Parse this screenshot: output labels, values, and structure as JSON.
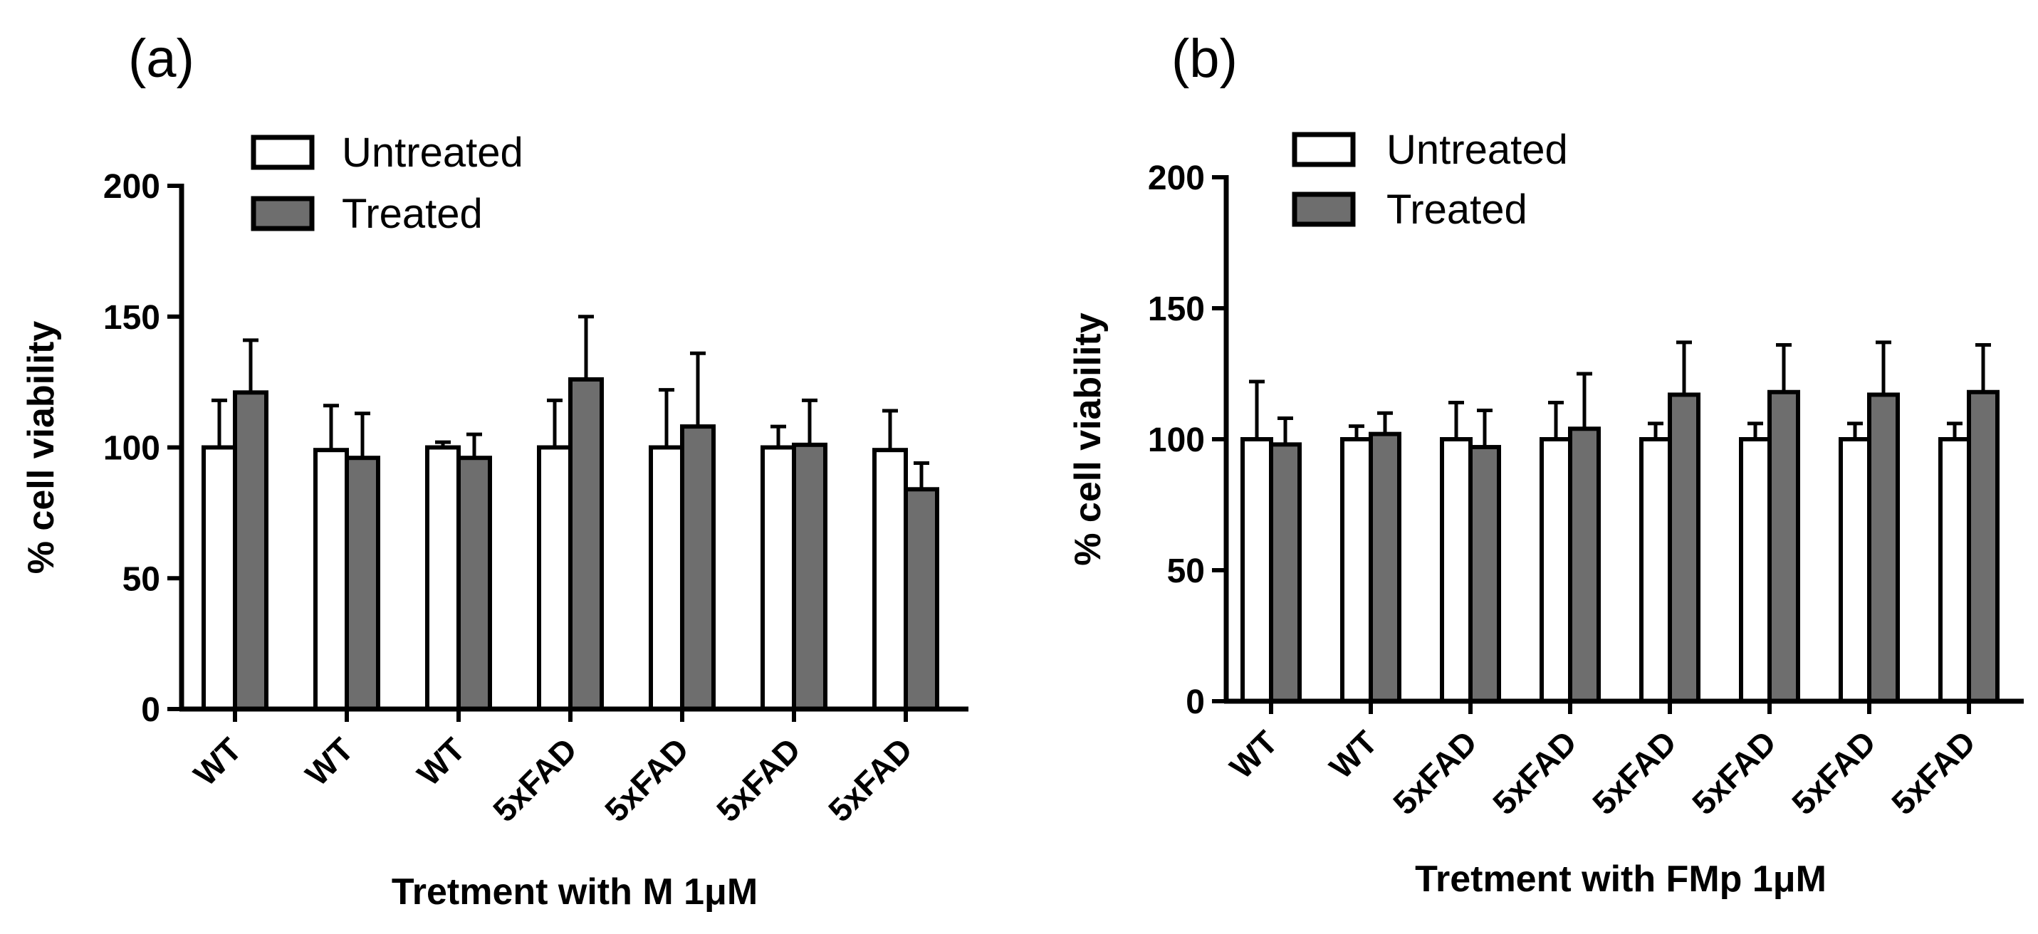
{
  "chart_data": [
    {
      "type": "bar",
      "panel_label": "(a)",
      "title": "",
      "xlabel": "Tretment with M 1μM",
      "ylabel": "% cell viability",
      "ylim": [
        0,
        200
      ],
      "yticks": [
        0,
        50,
        100,
        150,
        200
      ],
      "grid": false,
      "legend_position": "top-left",
      "categories": [
        "WT",
        "WT",
        "WT",
        "5xFAD",
        "5xFAD",
        "5xFAD",
        "5xFAD"
      ],
      "series": [
        {
          "name": "Untreated",
          "color": "#ffffff",
          "values": [
            100,
            99,
            100,
            100,
            100,
            100,
            99
          ],
          "errors": [
            18,
            17,
            2,
            18,
            22,
            8,
            15
          ]
        },
        {
          "name": "Treated",
          "color": "#6e6e6e",
          "values": [
            121,
            96,
            96,
            126,
            108,
            101,
            84
          ],
          "errors": [
            20,
            17,
            9,
            24,
            28,
            17,
            10
          ]
        }
      ]
    },
    {
      "type": "bar",
      "panel_label": "(b)",
      "title": "",
      "xlabel": "Tretment with FMp 1μM",
      "ylabel": "% cell viability",
      "ylim": [
        0,
        200
      ],
      "yticks": [
        0,
        50,
        100,
        150,
        200
      ],
      "grid": false,
      "legend_position": "top-left",
      "categories": [
        "WT",
        "WT",
        "5xFAD",
        "5xFAD",
        "5xFAD",
        "5xFAD",
        "5xFAD",
        "5xFAD"
      ],
      "series": [
        {
          "name": "Untreated",
          "color": "#ffffff",
          "values": [
            100,
            100,
            100,
            100,
            100,
            100,
            100,
            100
          ],
          "errors": [
            22,
            5,
            14,
            14,
            6,
            6,
            6,
            6
          ]
        },
        {
          "name": "Treated",
          "color": "#6e6e6e",
          "values": [
            98,
            102,
            97,
            104,
            117,
            118,
            117,
            118
          ],
          "errors": [
            10,
            8,
            14,
            21,
            20,
            18,
            20,
            18
          ]
        }
      ]
    }
  ]
}
